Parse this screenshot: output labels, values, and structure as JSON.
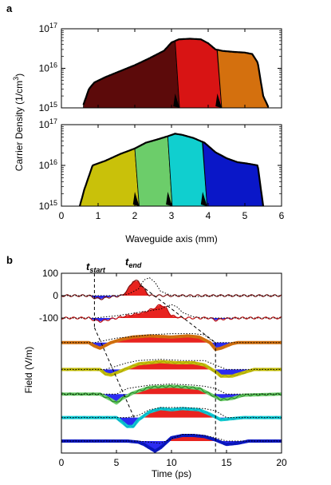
{
  "colors": {
    "dark_red": "#5c0a0a",
    "red": "#d81414",
    "orange": "#d4700e",
    "yellow": "#c9c10a",
    "green": "#6ccd6a",
    "cyan": "#10cfcf",
    "blue": "#0a17c8",
    "pos_fill": "#e8231f",
    "neg_fill": "#2b2bf0"
  },
  "panel_a": {
    "letter": "a",
    "ylabel": "Carrier Density (1/cm",
    "ylabel_sup": "3",
    "ylabel_close": ")",
    "xlabel": "Waveguide axis (mm)",
    "y_ticks_top": [
      {
        "base": "10",
        "exp": "17"
      },
      {
        "base": "10",
        "exp": "16"
      },
      {
        "base": "10",
        "exp": "15"
      }
    ],
    "y_ticks_bottom": [
      {
        "base": "10",
        "exp": "17"
      },
      {
        "base": "10",
        "exp": "16"
      },
      {
        "base": "10",
        "exp": "15"
      }
    ],
    "x_ticks": [
      "0",
      "1",
      "2",
      "3",
      "4",
      "5",
      "6"
    ]
  },
  "panel_b": {
    "letter": "b",
    "t_start_label": "t",
    "t_start_sub": "start",
    "t_end_label": "t",
    "t_end_sub": "end",
    "ylabel": "Field (V/m)",
    "xlabel": "Time (ps)",
    "y_ticks": [
      "100",
      "0",
      "-100"
    ],
    "x_ticks": [
      "0",
      "5",
      "10",
      "15",
      "20"
    ]
  },
  "chart_data": [
    {
      "type": "area",
      "panel": "a-top",
      "xlabel": "Waveguide axis (mm)",
      "ylabel": "Carrier Density (1/cm3)",
      "xlim": [
        0,
        6
      ],
      "ylim": [
        1000000000000000.0,
        1e+17
      ],
      "yscale": "log",
      "envelope": {
        "x": [
          0.6,
          0.75,
          0.9,
          1.2,
          1.6,
          2.0,
          2.4,
          2.8,
          3.0,
          3.2,
          3.5,
          3.8,
          4.0,
          4.2,
          4.4,
          4.7,
          5.0,
          5.2,
          5.35,
          5.5,
          5.65
        ],
        "y": [
          1200000000000000.0,
          3000000000000000.0,
          4400000000000000.0,
          6000000000000000.0,
          8500000000000000.0,
          1.2e+16,
          1.8e+16,
          2.8e+16,
          4.5e+16,
          5.4e+16,
          5.6e+16,
          5.4e+16,
          4.3e+16,
          3e+16,
          2.75e+16,
          2.6e+16,
          2.5e+16,
          2.3e+16,
          1.4e+16,
          2000000000000000.0,
          1000000000000000.0
        ]
      },
      "regions": [
        {
          "name": "",
          "color": "dark_red",
          "x_range": [
            0.6,
            3.1
          ]
        },
        {
          "name": "",
          "color": "red",
          "x_range": [
            3.1,
            4.25
          ]
        },
        {
          "name": "",
          "color": "orange",
          "x_range": [
            4.25,
            5.65
          ]
        }
      ]
    },
    {
      "type": "area",
      "panel": "a-bottom",
      "xlabel": "Waveguide axis (mm)",
      "ylabel": "Carrier Density (1/cm3)",
      "xlim": [
        0,
        6
      ],
      "ylim": [
        1000000000000000.0,
        1e+17
      ],
      "yscale": "log",
      "envelope": {
        "x": [
          0.5,
          0.62,
          0.85,
          1.2,
          1.6,
          2.0,
          2.3,
          2.6,
          2.9,
          3.1,
          3.3,
          3.6,
          3.9,
          4.2,
          4.5,
          4.8,
          5.1,
          5.35,
          5.5
        ],
        "y": [
          1000000000000000.0,
          2500000000000000.0,
          1e+16,
          1.3e+16,
          1.9e+16,
          2.6e+16,
          3.6e+16,
          4.3e+16,
          5.2e+16,
          6e+16,
          5.6e+16,
          4.7e+16,
          3.6e+16,
          2.1e+16,
          1.5e+16,
          1.2e+16,
          1.1e+16,
          1e+16,
          1000000000000000.0
        ]
      },
      "regions": [
        {
          "name": "",
          "color": "yellow",
          "x_range": [
            0.5,
            2.0
          ]
        },
        {
          "name": "",
          "color": "green",
          "x_range": [
            2.0,
            2.9
          ]
        },
        {
          "name": "",
          "color": "cyan",
          "x_range": [
            2.9,
            3.85
          ]
        },
        {
          "name": "",
          "color": "blue",
          "x_range": [
            3.85,
            5.5
          ]
        }
      ]
    },
    {
      "type": "line",
      "panel": "b",
      "xlabel": "Time (ps)",
      "ylabel": "Field (V/m)",
      "xlim": [
        0,
        20
      ],
      "t_start": 3,
      "t_end": 14,
      "series": [
        {
          "name": "",
          "color": "dark_red",
          "trace_color": "#7a1010",
          "offset": 0,
          "x": [
            0,
            2.5,
            3.0,
            3.5,
            4.5,
            5.5,
            6.0,
            6.5,
            7.0,
            7.5,
            8.0,
            8.5,
            10,
            12,
            14,
            16,
            20
          ],
          "y": [
            0,
            0,
            -10,
            -15,
            -5,
            0,
            25,
            65,
            65,
            30,
            0,
            0,
            0,
            0,
            0,
            0,
            0
          ],
          "ref_x": [
            0,
            5,
            6,
            7,
            7.5,
            8,
            8.5,
            9,
            10,
            11,
            12,
            14,
            20
          ],
          "ref_y": [
            0,
            0,
            5,
            30,
            70,
            80,
            60,
            20,
            0,
            0,
            -5,
            0,
            0
          ]
        },
        {
          "name": "",
          "color": "red",
          "trace_color": "#c01010",
          "offset": -100,
          "x": [
            0,
            2.5,
            3.0,
            3.5,
            4.5,
            5.5,
            6.5,
            7.5,
            8.5,
            9.0,
            9.5,
            10,
            11,
            13.5,
            14,
            14.5,
            16,
            20
          ],
          "y": [
            0,
            0,
            -10,
            -15,
            -5,
            5,
            15,
            25,
            45,
            60,
            45,
            10,
            0,
            0,
            -10,
            -5,
            0,
            0
          ],
          "ref_x": [
            0,
            3,
            5,
            7,
            9,
            10,
            10.5,
            11,
            12,
            13,
            14,
            20
          ],
          "ref_y": [
            0,
            0,
            10,
            25,
            40,
            60,
            50,
            25,
            5,
            0,
            0,
            0
          ]
        },
        {
          "name": "",
          "color": "orange",
          "trace_color": "#c86d0e",
          "offset": -210,
          "x": [
            0,
            2.5,
            3.0,
            3.5,
            4.5,
            5.5,
            6.5,
            8,
            10,
            11.5,
            12.5,
            13.5,
            14,
            14.5,
            15.5,
            16,
            20
          ],
          "y": [
            0,
            0,
            -15,
            -25,
            0,
            15,
            25,
            30,
            25,
            30,
            25,
            0,
            -30,
            -25,
            -5,
            0,
            0
          ],
          "ref_x": [
            0,
            3,
            5,
            8,
            10,
            12,
            13,
            13.5,
            14,
            20
          ],
          "ref_y": [
            0,
            0,
            20,
            35,
            40,
            40,
            35,
            15,
            0,
            0
          ]
        },
        {
          "name": "",
          "color": "yellow",
          "trace_color": "#a8a80a",
          "offset": -330,
          "x": [
            0,
            3.5,
            4.0,
            4.5,
            5.5,
            7,
            9,
            10.5,
            12,
            13,
            14,
            14.5,
            15.5,
            16.5,
            17.5,
            20
          ],
          "y": [
            0,
            0,
            -20,
            -25,
            -5,
            25,
            35,
            30,
            30,
            20,
            -10,
            -30,
            -30,
            -15,
            0,
            0
          ],
          "ref_x": [
            0,
            4,
            5,
            6,
            7,
            9,
            11,
            13,
            14,
            15,
            20
          ],
          "ref_y": [
            0,
            0,
            15,
            30,
            40,
            45,
            40,
            40,
            20,
            0,
            0
          ]
        },
        {
          "name": "",
          "color": "green",
          "trace_color": "#2e8a2e",
          "offset": -440,
          "x": [
            0,
            3.5,
            4.5,
            5.0,
            5.5,
            6.5,
            8,
            10,
            11.5,
            12.5,
            13.5,
            14.5,
            15.5,
            16.5,
            20
          ],
          "y": [
            0,
            0,
            -25,
            -40,
            -20,
            5,
            30,
            35,
            30,
            25,
            0,
            -25,
            -20,
            -5,
            0
          ],
          "ref_x": [
            0,
            4,
            5,
            6,
            8,
            10,
            12,
            13,
            14,
            15,
            20
          ],
          "ref_y": [
            0,
            0,
            0,
            25,
            40,
            45,
            40,
            35,
            25,
            0,
            0
          ]
        },
        {
          "name": "",
          "color": "cyan",
          "trace_color": "#0aa8c8",
          "offset": -545,
          "x": [
            0,
            5.0,
            5.5,
            6.0,
            6.5,
            7.0,
            8,
            9,
            10,
            11,
            12.5,
            13.5,
            14.5,
            15.5,
            16.5,
            20
          ],
          "y": [
            0,
            0,
            -20,
            -40,
            -40,
            -10,
            25,
            40,
            35,
            40,
            35,
            15,
            -10,
            -5,
            0,
            0
          ],
          "ref_x": [
            0,
            5,
            6,
            7,
            8,
            9,
            11,
            13,
            14,
            15,
            20
          ],
          "ref_y": [
            0,
            0,
            0,
            10,
            35,
            45,
            45,
            40,
            30,
            0,
            0
          ]
        },
        {
          "name": "",
          "color": "blue",
          "trace_color": "#0a17a8",
          "offset": -650,
          "x": [
            0,
            6,
            7,
            7.5,
            8.0,
            8.5,
            9.0,
            10,
            11,
            12,
            13,
            14,
            15,
            16,
            17,
            20
          ],
          "y": [
            0,
            0,
            -5,
            -15,
            -30,
            -45,
            -30,
            15,
            25,
            25,
            20,
            5,
            -15,
            -10,
            0,
            0
          ],
          "ref_x": [
            0,
            7,
            8,
            9,
            10,
            11,
            12,
            13,
            14,
            15,
            20
          ],
          "ref_y": [
            0,
            0,
            -5,
            -10,
            10,
            30,
            30,
            25,
            15,
            0,
            0
          ]
        }
      ]
    }
  ]
}
